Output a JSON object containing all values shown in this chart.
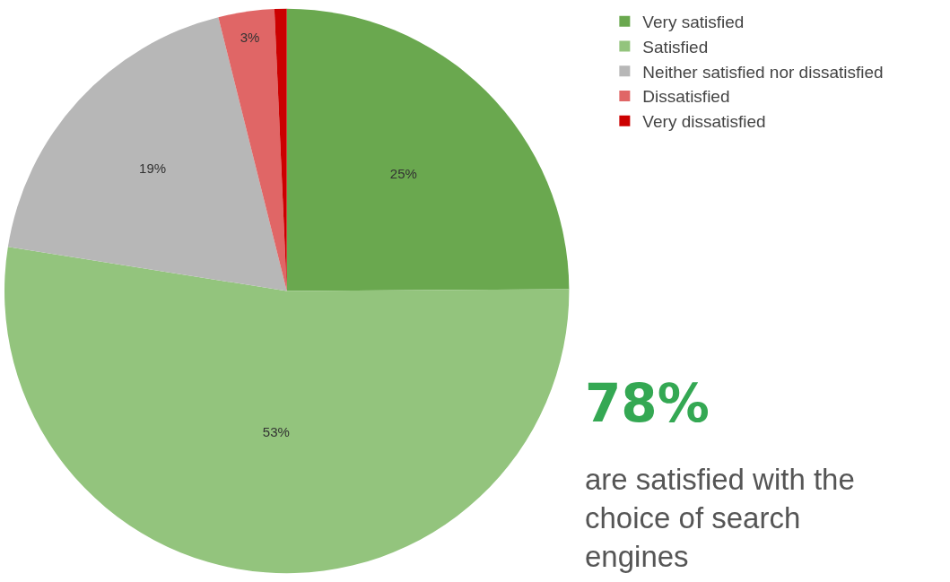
{
  "chart_data": {
    "type": "pie",
    "categories": [
      "Very satisfied",
      "Satisfied",
      "Neither satisfied nor dissatisfied",
      "Dissatisfied",
      "Very dissatisfied"
    ],
    "values": [
      24.9,
      52.6,
      18.6,
      3.2,
      0.7
    ],
    "colors": [
      "#6aa84f",
      "#93c47d",
      "#b7b7b7",
      "#e06666",
      "#cc0000"
    ],
    "value_labels": [
      "25%",
      "53%",
      "19%",
      "3%",
      null
    ],
    "legend": "top right",
    "annotations": [
      "78%",
      "are satisfied with the choice of search engines"
    ]
  }
}
